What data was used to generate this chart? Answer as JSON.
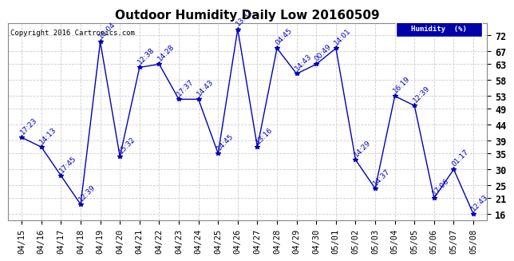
{
  "title": "Outdoor Humidity Daily Low 20160509",
  "copyright": "Copyright 2016 Cartronics.com",
  "legend_label": "Humidity  (%)",
  "x_labels": [
    "04/15",
    "04/16",
    "04/17",
    "04/18",
    "04/19",
    "04/20",
    "04/21",
    "04/22",
    "04/23",
    "04/24",
    "04/25",
    "04/26",
    "04/27",
    "04/28",
    "04/29",
    "04/30",
    "05/01",
    "05/02",
    "05/03",
    "05/04",
    "05/05",
    "05/06",
    "05/07",
    "05/08"
  ],
  "y_values": [
    40,
    37,
    28,
    19,
    70,
    34,
    62,
    63,
    52,
    52,
    35,
    74,
    37,
    68,
    60,
    63,
    68,
    33,
    24,
    53,
    50,
    21,
    30,
    16
  ],
  "point_labels": [
    "17:23",
    "14:13",
    "17:45",
    "12:39",
    "16:04",
    "15:32",
    "12:38",
    "14:28",
    "17:37",
    "14:43",
    "14:45",
    "13:32",
    "13:16",
    "04:45",
    "14:43",
    "00:49",
    "14:01",
    "14:29",
    "14:37",
    "16:19",
    "12:39",
    "17:06",
    "01:17",
    "12:43"
  ],
  "ylim": [
    14,
    76
  ],
  "yticks": [
    16,
    21,
    25,
    30,
    35,
    39,
    44,
    49,
    53,
    58,
    63,
    67,
    72
  ],
  "line_color": "#0000bb",
  "marker_color": "#0000bb",
  "bg_color": "#ffffff",
  "plot_bg_color": "#ffffff",
  "grid_color": "#cccccc",
  "title_fontsize": 11,
  "label_fontsize": 7.5,
  "point_label_fontsize": 6.5,
  "legend_bg": "#0000aa",
  "legend_text_color": "#ffffff"
}
